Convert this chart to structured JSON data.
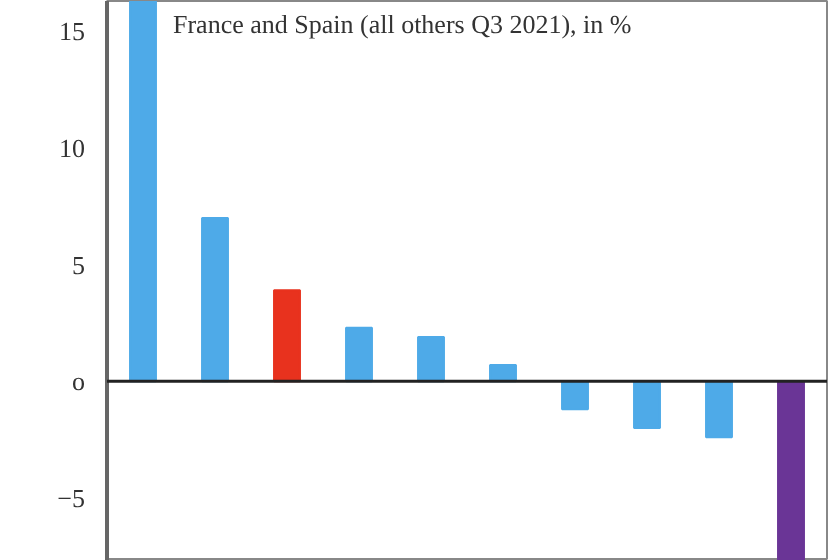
{
  "chart_data": {
    "type": "bar",
    "title": "France and Spain (all others Q3 2021), in %",
    "categories": [
      null,
      null,
      null,
      null,
      null,
      null,
      null,
      null,
      null,
      null
    ],
    "values": [
      16.3,
      7.0,
      3.9,
      2.3,
      1.9,
      0.7,
      -1.2,
      -2.0,
      -2.4,
      -7.7
    ],
    "colors": [
      "#4eaae8",
      "#4eaae8",
      "#e8321e",
      "#4eaae8",
      "#4eaae8",
      "#4eaae8",
      "#4eaae8",
      "#4eaae8",
      "#4eaae8",
      "#6a3596"
    ],
    "ylim": [
      -7.7,
      16.3
    ],
    "yticks": [
      -5,
      {
        "value": 0,
        "label": "o"
      },
      5,
      10,
      15
    ],
    "ref_lines": [
      {
        "axis": "y",
        "value": 0,
        "color": "#222222"
      }
    ],
    "grid": false
  }
}
